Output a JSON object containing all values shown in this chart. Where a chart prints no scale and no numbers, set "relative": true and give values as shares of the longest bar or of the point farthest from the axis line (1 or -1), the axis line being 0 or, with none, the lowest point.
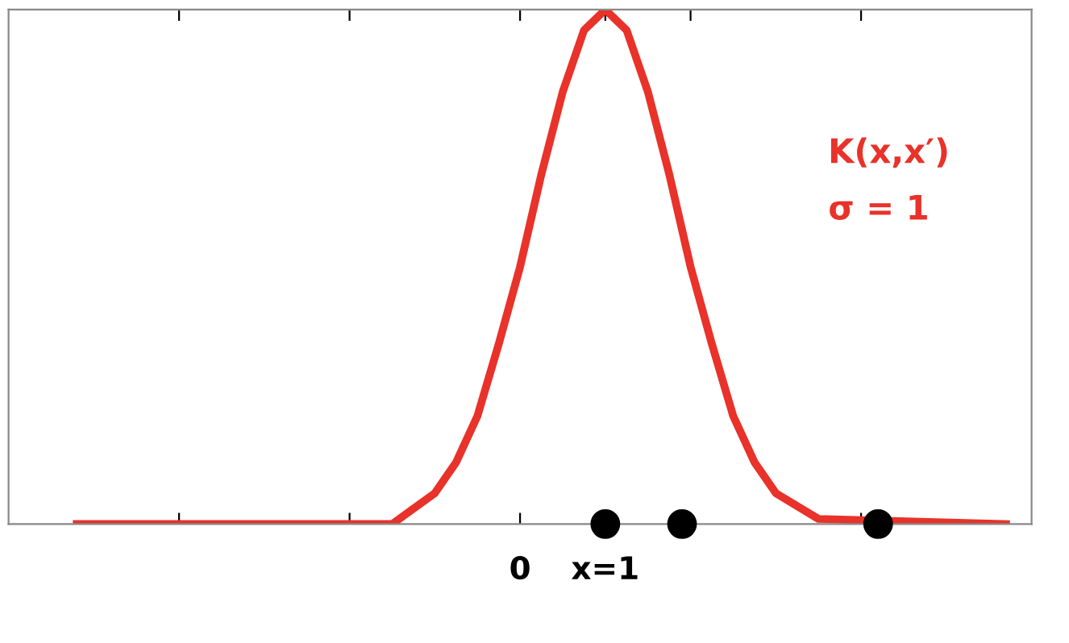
{
  "chart_data": {
    "type": "line",
    "relative": true,
    "tick_labels": "x",
    "xlim": [
      -6,
      6
    ],
    "xticks": [
      {
        "value": -4,
        "label": null
      },
      {
        "value": -2,
        "label": null
      },
      0,
      {
        "value": 1,
        "label": "x=1"
      },
      {
        "value": 2,
        "label": null
      },
      {
        "value": 4,
        "label": null
      }
    ],
    "annotations": [
      "K(x,x′)",
      "σ = 1"
    ],
    "series": [
      {
        "color": "#e8322a",
        "x": [
          -5.2,
          -1.5,
          -1.0,
          -0.75,
          -0.5,
          -0.25,
          0,
          0.25,
          0.5,
          0.75,
          1,
          1.25,
          1.5,
          1.75,
          2,
          2.25,
          2.5,
          2.75,
          3,
          3.5,
          5.7
        ],
        "values": [
          0,
          0,
          0.06,
          0.12,
          0.21,
          0.35,
          0.5,
          0.68,
          0.84,
          0.96,
          1,
          0.96,
          0.84,
          0.68,
          0.5,
          0.35,
          0.21,
          0.12,
          0.06,
          0.01,
          0
        ],
        "line_style": "solid",
        "marker": "none"
      },
      {
        "type": "scatter",
        "color": "#000000",
        "x": [
          1,
          1.9,
          4.2
        ],
        "values": [
          0,
          0,
          0
        ],
        "marker": "circle"
      }
    ]
  }
}
